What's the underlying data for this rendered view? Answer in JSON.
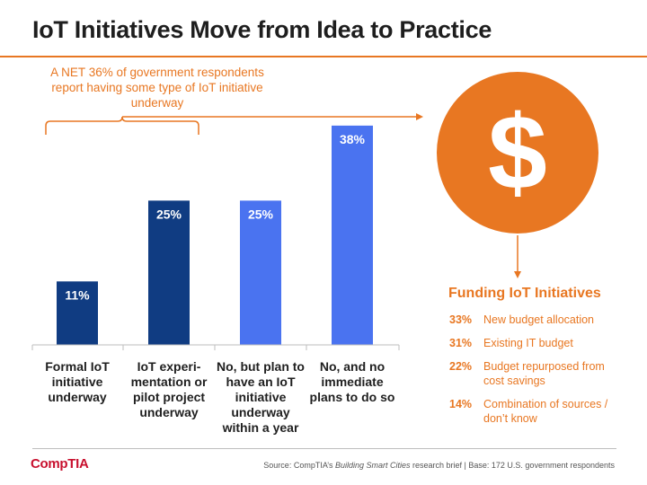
{
  "header": {
    "title": "IoT Initiatives Move from Idea to Practice"
  },
  "annotation": {
    "text": "A NET 36% of government respondents report having some type of IoT initiative underway"
  },
  "colors": {
    "accent": "#e87722",
    "dark_bar": "#103c82",
    "light_bar": "#4a73f0",
    "brand": "#c8102e"
  },
  "chart_data": {
    "type": "bar",
    "categories": [
      "Formal IoT initiative underway",
      "IoT experi-mentation or pilot project underway",
      "No, but plan to have an IoT initiative underway within a year",
      "No, and no immediate plans to do so"
    ],
    "values": [
      11,
      25,
      25,
      38
    ],
    "data_labels": [
      "11%",
      "25%",
      "25%",
      "38%"
    ],
    "bar_colors": [
      "#103c82",
      "#103c82",
      "#4a73f0",
      "#4a73f0"
    ],
    "ylim": [
      0,
      40
    ],
    "grid": false
  },
  "xlabels": [
    "Formal IoT initiative underway",
    "IoT experi-mentation or pilot project underway",
    "No, but plan to have an IoT initiative underway within a year",
    "No, and no immediate plans to do so"
  ],
  "funding": {
    "icon": "dollar-icon",
    "symbol": "$",
    "title": "Funding IoT Initiatives",
    "items": [
      {
        "pct": "33%",
        "label": "New budget allocation"
      },
      {
        "pct": "31%",
        "label": "Existing IT budget"
      },
      {
        "pct": "22%",
        "label": "Budget repurposed from cost savings"
      },
      {
        "pct": "14%",
        "label": "Combination of sources / don’t know"
      }
    ]
  },
  "footer": {
    "logo": "CompTIA",
    "source_prefix": "Source: CompTIA’s ",
    "source_title": "Building Smart Cities",
    "source_suffix": " research brief | Base: 172 U.S. government respondents"
  }
}
